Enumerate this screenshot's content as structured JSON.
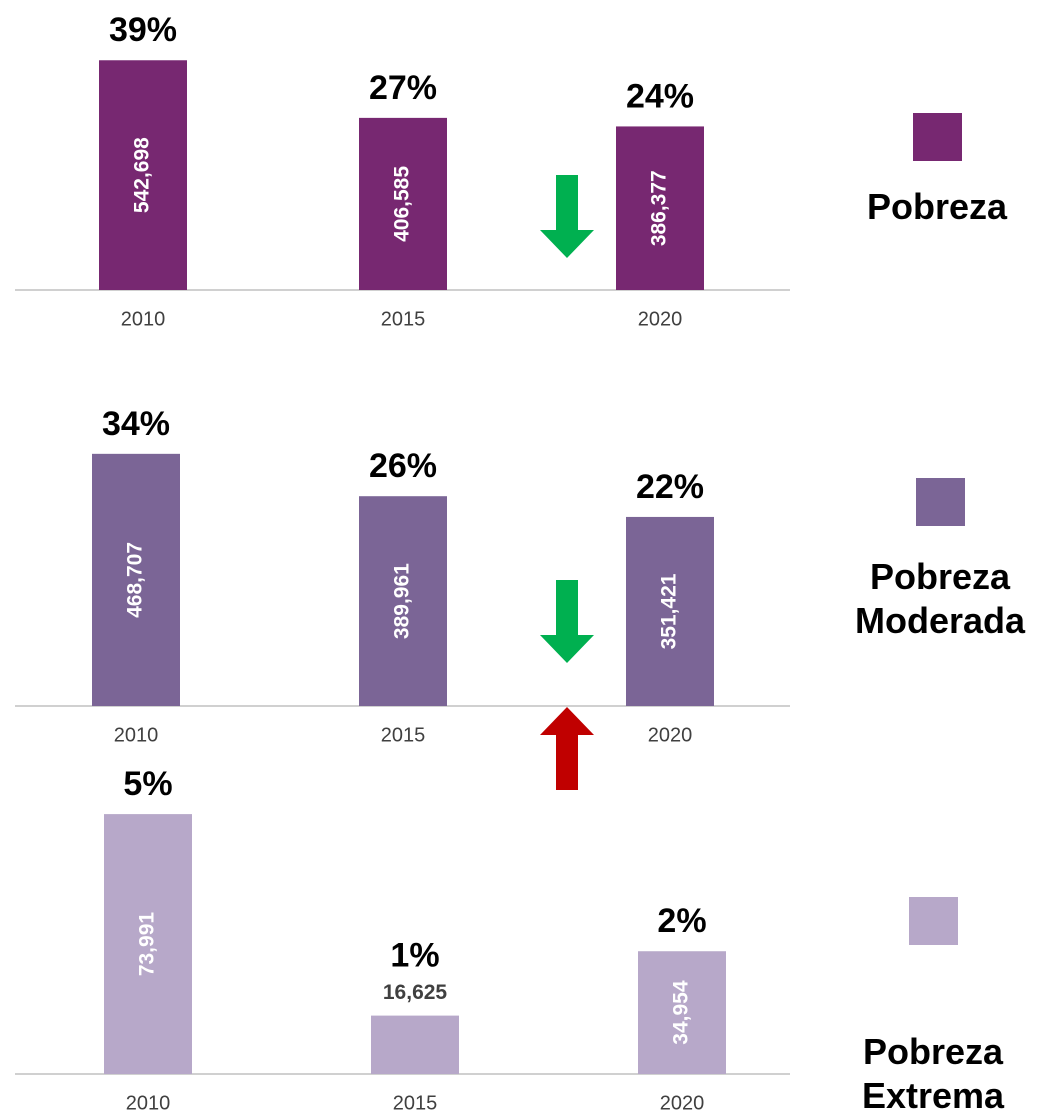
{
  "chart_data": [
    {
      "type": "bar",
      "categories": [
        "2010",
        "2015",
        "2020"
      ],
      "series": [
        {
          "name": "Pobreza",
          "color": "#772871",
          "values": [
            542698,
            406585,
            386377
          ],
          "value_labels": [
            "542,698",
            "406,585",
            "386,377"
          ],
          "annotations": [
            "39%",
            "27%",
            "24%"
          ]
        }
      ],
      "ylim": [
        0,
        600000
      ]
    },
    {
      "type": "bar",
      "categories": [
        "2010",
        "2015",
        "2020"
      ],
      "series": [
        {
          "name": "Pobreza Moderada",
          "color": "#7b6596",
          "values": [
            468707,
            389961,
            351421
          ],
          "value_labels": [
            "468,707",
            "389,961",
            "351,421"
          ],
          "annotations": [
            "34%",
            "26%",
            "22%"
          ]
        }
      ],
      "ylim": [
        0,
        500000
      ]
    },
    {
      "type": "bar",
      "categories": [
        "2010",
        "2015",
        "2020"
      ],
      "series": [
        {
          "name": "Pobreza Extrema",
          "color": "#b7a8c9",
          "values": [
            73991,
            16625,
            34954
          ],
          "value_labels": [
            "73,991",
            "16,625",
            "34,954"
          ],
          "annotations": [
            "5%",
            "1%",
            "2%"
          ]
        }
      ],
      "ylim": [
        0,
        80000
      ]
    }
  ]
}
